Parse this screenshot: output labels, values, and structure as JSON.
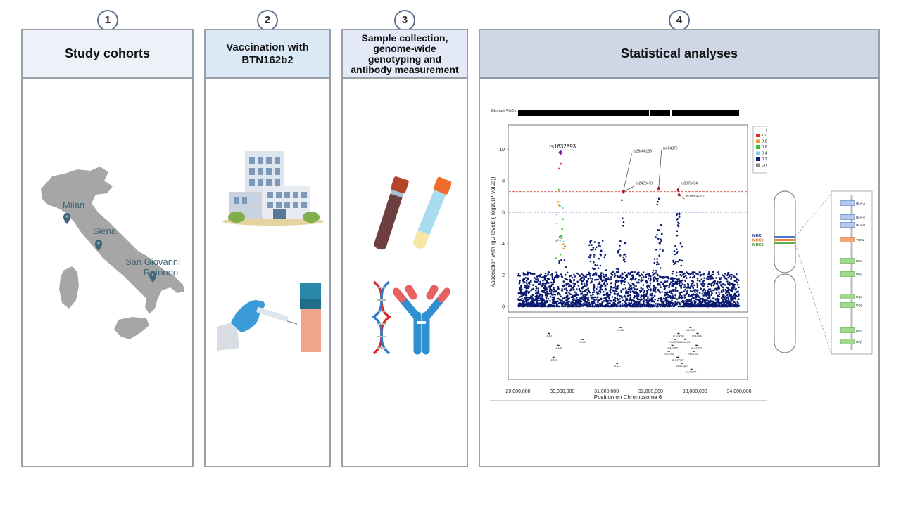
{
  "steps": [
    {
      "number": "1",
      "title": "Study cohorts"
    },
    {
      "number": "2",
      "title": "Vaccination with BTN162b2"
    },
    {
      "number": "3",
      "title": "Sample collection, genome-wide genotyping and antibody measurement"
    },
    {
      "number": "4",
      "title": "Statistical analyses"
    }
  ],
  "map": {
    "cities": [
      "Milan",
      "Siena",
      "San Giovanni",
      "Rotondo"
    ]
  },
  "colors": {
    "panel1_header": "#edf2f9",
    "panel2_header": "#dbe9f7",
    "panel3_header": "#e3e9f6",
    "panel4_header": "#cfd6e6",
    "map_gray": "#a6a6a6",
    "snp_navy": "#0a1a6e"
  },
  "chart_data": {
    "type": "scatter",
    "title": "",
    "xlabel": "Position on Chromosome 6",
    "ylabel": "Association with IgG levels (-log10(P-value))",
    "xlim": [
      29000000,
      34000000
    ],
    "ylim": [
      0,
      11
    ],
    "x_ticks": [
      "29,000,000",
      "30,000,000",
      "31,000,000",
      "32,000,000",
      "33,000,000",
      "34,000,000"
    ],
    "y_ticks": [
      "0",
      "2",
      "4",
      "6",
      "8",
      "10"
    ],
    "plotted_snps_label": "Plotted SNPs",
    "thresholds": [
      {
        "y": 7.3,
        "color": "#cc2222",
        "style": "dashed"
      },
      {
        "y": 6.0,
        "color": "#2233aa",
        "style": "dashed"
      }
    ],
    "lead_snp": {
      "name": "rs1632893",
      "x": 29960000,
      "y": 9.8
    },
    "annotated_snps": [
      {
        "name": "rs28366135",
        "x": 31380000,
        "y": 7.3
      },
      {
        "name": "rs2428479",
        "x": 31380000,
        "y": 7.3
      },
      {
        "name": "rs454875",
        "x": 32180000,
        "y": 7.5
      },
      {
        "name": "rs3072454",
        "x": 32620000,
        "y": 7.4
      },
      {
        "name": "rs28366287",
        "x": 32640000,
        "y": 7.1
      }
    ],
    "legend": {
      "title": "r²",
      "position": "top-right",
      "entries": [
        {
          "label": "1.0",
          "color": "#e8261f"
        },
        {
          "label": "0.8",
          "color": "#f39a1f"
        },
        {
          "label": "0.6",
          "color": "#2ec52e"
        },
        {
          "label": "0.4",
          "color": "#87c9ea"
        },
        {
          "label": "0.2",
          "color": "#14197a"
        },
        {
          "label": "Unknown",
          "color": "#8c8c8c"
        }
      ]
    },
    "genes": [
      {
        "name": "HLA-F",
        "x": 29700000,
        "row": 1
      },
      {
        "name": "HLA-E",
        "x": 30460000,
        "row": 2
      },
      {
        "name": "HLA-G",
        "x": 29800000,
        "row": 5
      },
      {
        "name": "HLA-A",
        "x": 29910000,
        "row": 3
      },
      {
        "name": "HLA-B",
        "x": 31320000,
        "row": 0
      },
      {
        "name": "HLA-C",
        "x": 31240000,
        "row": 6
      },
      {
        "name": "HLA-DRA",
        "x": 32410000,
        "row": 4
      },
      {
        "name": "HLA-DRB5",
        "x": 32490000,
        "row": 3
      },
      {
        "name": "HLA-DRB1",
        "x": 32550000,
        "row": 2
      },
      {
        "name": "HLA-DQA1",
        "x": 32610000,
        "row": 5
      },
      {
        "name": "HLA-DQB1",
        "x": 32630000,
        "row": 1
      },
      {
        "name": "HLA-DQA2",
        "x": 32710000,
        "row": 6
      },
      {
        "name": "HLA-DOB",
        "x": 32780000,
        "row": 2
      },
      {
        "name": "HLA-DMB",
        "x": 32900000,
        "row": 0
      },
      {
        "name": "HLA-DMA",
        "x": 32920000,
        "row": 7
      },
      {
        "name": "HLA-DPB1",
        "x": 33040000,
        "row": 3
      },
      {
        "name": "HLA-DOA",
        "x": 32970000,
        "row": 4
      },
      {
        "name": "HLA-DPA1",
        "x": 33060000,
        "row": 1
      }
    ],
    "peaks": [
      {
        "x": 29950000,
        "y": 9.8
      },
      {
        "x": 31350000,
        "y": 7.3
      },
      {
        "x": 32180000,
        "y": 7.5
      },
      {
        "x": 32620000,
        "y": 7.4
      }
    ]
  },
  "chromosome": {
    "classes": [
      {
        "label": "MHCI",
        "color": "#1a2a8a"
      },
      {
        "label": "MHCIII",
        "color": "#e06a20"
      },
      {
        "label": "MHCII",
        "color": "#3a8a2a"
      }
    ],
    "genes": [
      {
        "label": "HLA-A",
        "cls": "I"
      },
      {
        "label": "HLA-C",
        "cls": "I"
      },
      {
        "label": "HLA-B",
        "cls": "I"
      },
      {
        "label": "TNFα",
        "cls": "III"
      },
      {
        "label": "DRα",
        "cls": "II"
      },
      {
        "label": "DRβ",
        "cls": "II"
      },
      {
        "label": "DQα",
        "cls": "II"
      },
      {
        "label": "DQβ",
        "cls": "II"
      },
      {
        "label": "DPα",
        "cls": "II"
      },
      {
        "label": "DPβ",
        "cls": "II"
      }
    ]
  }
}
